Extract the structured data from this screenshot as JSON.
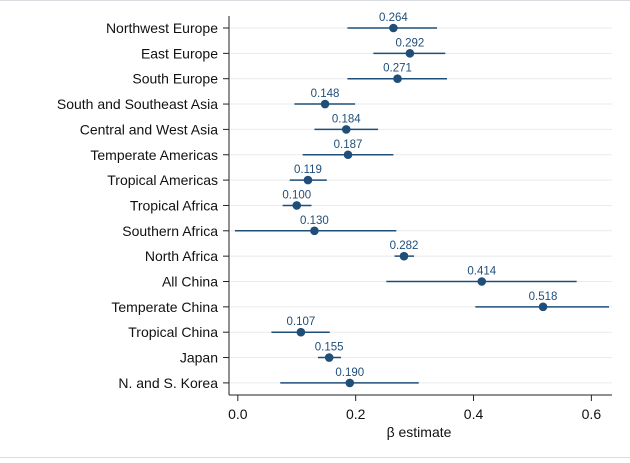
{
  "colors": {
    "accent": "#1f4e79",
    "grid": "#e7eaee",
    "axis": "#222222",
    "text": "#111111",
    "frame": "#d9dde2"
  },
  "chart_data": {
    "type": "scatter",
    "orientation": "horizontal",
    "title": "",
    "xlabel": "β estimate",
    "ylabel": "",
    "xlim": [
      -0.015,
      0.635
    ],
    "xticks": [
      0.0,
      0.2,
      0.4,
      0.6
    ],
    "xtick_labels": [
      "0.0",
      "0.2",
      "0.4",
      "0.6"
    ],
    "grid": true,
    "legend": "none",
    "categories": [
      "Northwest Europe",
      "East Europe",
      "South Europe",
      "South and Southeast Asia",
      "Central and West Asia",
      "Temperate Americas",
      "Tropical Americas",
      "Tropical Africa",
      "Southern Africa",
      "North Africa",
      "All China",
      "Temperate China",
      "Tropical China",
      "Japan",
      "N. and S. Korea"
    ],
    "values": [
      0.264,
      0.292,
      0.271,
      0.148,
      0.184,
      0.187,
      0.119,
      0.1,
      0.13,
      0.282,
      0.414,
      0.518,
      0.107,
      0.155,
      0.19
    ],
    "value_labels": [
      "0.264",
      "0.292",
      "0.271",
      "0.148",
      "0.184",
      "0.187",
      "0.119",
      "0.100",
      "0.130",
      "0.282",
      "0.414",
      "0.518",
      "0.107",
      "0.155",
      "0.190"
    ],
    "ci_lower": [
      0.186,
      0.23,
      0.186,
      0.096,
      0.13,
      0.11,
      0.088,
      0.076,
      -0.005,
      0.266,
      0.252,
      0.403,
      0.057,
      0.136,
      0.072
    ],
    "ci_upper": [
      0.338,
      0.352,
      0.355,
      0.199,
      0.238,
      0.264,
      0.151,
      0.125,
      0.269,
      0.299,
      0.575,
      0.63,
      0.156,
      0.175,
      0.307
    ]
  }
}
